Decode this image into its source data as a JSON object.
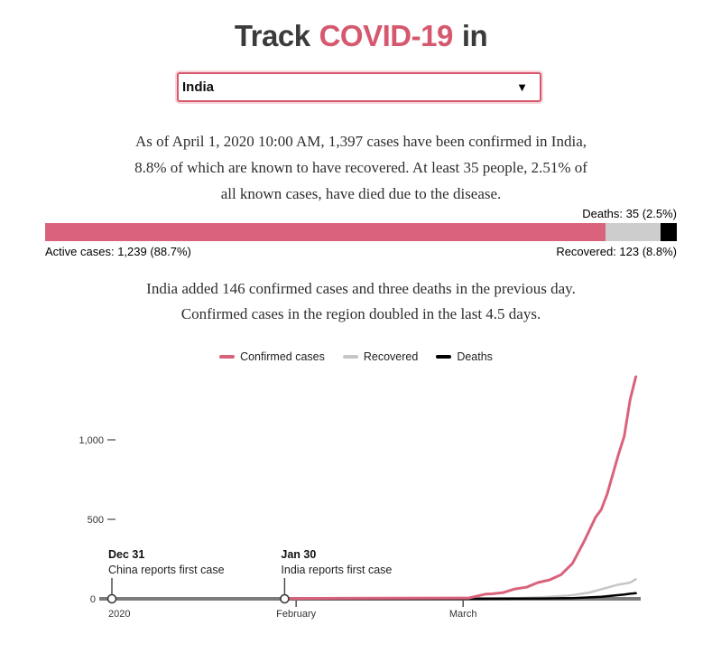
{
  "header": {
    "title_prefix": "Track",
    "title_highlight": "COVID-19",
    "title_suffix": "in",
    "accent_color": "#d6586e"
  },
  "country_selector": {
    "selected": "India",
    "arrow_icon": "▼"
  },
  "summary": {
    "line1": "As of April 1, 2020 10:00 AM, 1,397 cases have been confirmed in India,",
    "line2": "8.8% of which are known to have recovered. At least 35 people, 2.51% of",
    "line3": "all known cases, have died due to the disease."
  },
  "status_bar": {
    "deaths_label": "Deaths: 35 (2.5%)",
    "active_label": "Active cases: 1,239 (88.7%)",
    "recovered_label": "Recovered: 123 (8.8%)",
    "segments": [
      {
        "name": "active",
        "pct": 88.7,
        "color": "#d9637b"
      },
      {
        "name": "recovered",
        "pct": 8.8,
        "color": "#cdcdcd"
      },
      {
        "name": "deaths",
        "pct": 2.5,
        "color": "#000000"
      }
    ]
  },
  "daily_summary": {
    "line1": "India added 146 confirmed cases and three deaths in the previous day.",
    "line2": "Confirmed cases in the region doubled in the last 4.5 days."
  },
  "legend": {
    "items": [
      {
        "label": "Confirmed cases",
        "color": "#d9637b"
      },
      {
        "label": "Recovered",
        "color": "#c6c6c6"
      },
      {
        "label": "Deaths",
        "color": "#000000"
      }
    ]
  },
  "chart_data": {
    "type": "line",
    "x_unit": "days since Dec 31 2019",
    "axis_color": "#7b7b7b",
    "x_axis": {
      "range_days": [
        0,
        92
      ],
      "ticks": [
        {
          "day": 0,
          "label": "2020",
          "tick": false,
          "align": "start"
        },
        {
          "day": 32,
          "label": "February",
          "tick": true,
          "align": "middle"
        },
        {
          "day": 61,
          "label": "March",
          "tick": true,
          "align": "middle"
        }
      ]
    },
    "y_axis": {
      "range": [
        0,
        1450
      ],
      "zero_label": "0",
      "ticks": [
        {
          "v": 500,
          "label": "500"
        },
        {
          "v": 1000,
          "label": "1,000"
        }
      ]
    },
    "series": [
      {
        "name": "Recovered",
        "color": "#c6c6c6",
        "width": 2.5,
        "points": [
          [
            30,
            0
          ],
          [
            62,
            3
          ],
          [
            70,
            4
          ],
          [
            75,
            10
          ],
          [
            80,
            23
          ],
          [
            83,
            40
          ],
          [
            85,
            60
          ],
          [
            87,
            80
          ],
          [
            88,
            90
          ],
          [
            89,
            95
          ],
          [
            90,
            102
          ],
          [
            91,
            123
          ]
        ]
      },
      {
        "name": "Deaths",
        "color": "#000000",
        "width": 2.5,
        "points": [
          [
            30,
            0
          ],
          [
            62,
            0
          ],
          [
            70,
            1
          ],
          [
            75,
            2
          ],
          [
            80,
            4
          ],
          [
            83,
            9
          ],
          [
            85,
            13
          ],
          [
            87,
            20
          ],
          [
            89,
            27
          ],
          [
            90,
            32
          ],
          [
            91,
            35
          ]
        ]
      },
      {
        "name": "Confirmed cases",
        "color": "#d9637b",
        "width": 3,
        "points": [
          [
            30,
            1
          ],
          [
            33,
            2
          ],
          [
            34,
            3
          ],
          [
            62,
            5
          ],
          [
            65,
            30
          ],
          [
            66,
            31
          ],
          [
            68,
            39
          ],
          [
            70,
            62
          ],
          [
            72,
            73
          ],
          [
            74,
            102
          ],
          [
            76,
            119
          ],
          [
            78,
            151
          ],
          [
            80,
            223
          ],
          [
            82,
            360
          ],
          [
            84,
            512
          ],
          [
            85,
            562
          ],
          [
            86,
            657
          ],
          [
            88,
            909
          ],
          [
            89,
            1024
          ],
          [
            90,
            1251
          ],
          [
            91,
            1397
          ]
        ]
      }
    ],
    "annotations": [
      {
        "day": 0,
        "title": "Dec 31",
        "text": "China reports first case"
      },
      {
        "day": 30,
        "title": "Jan 30",
        "text": "India reports first case"
      }
    ]
  }
}
